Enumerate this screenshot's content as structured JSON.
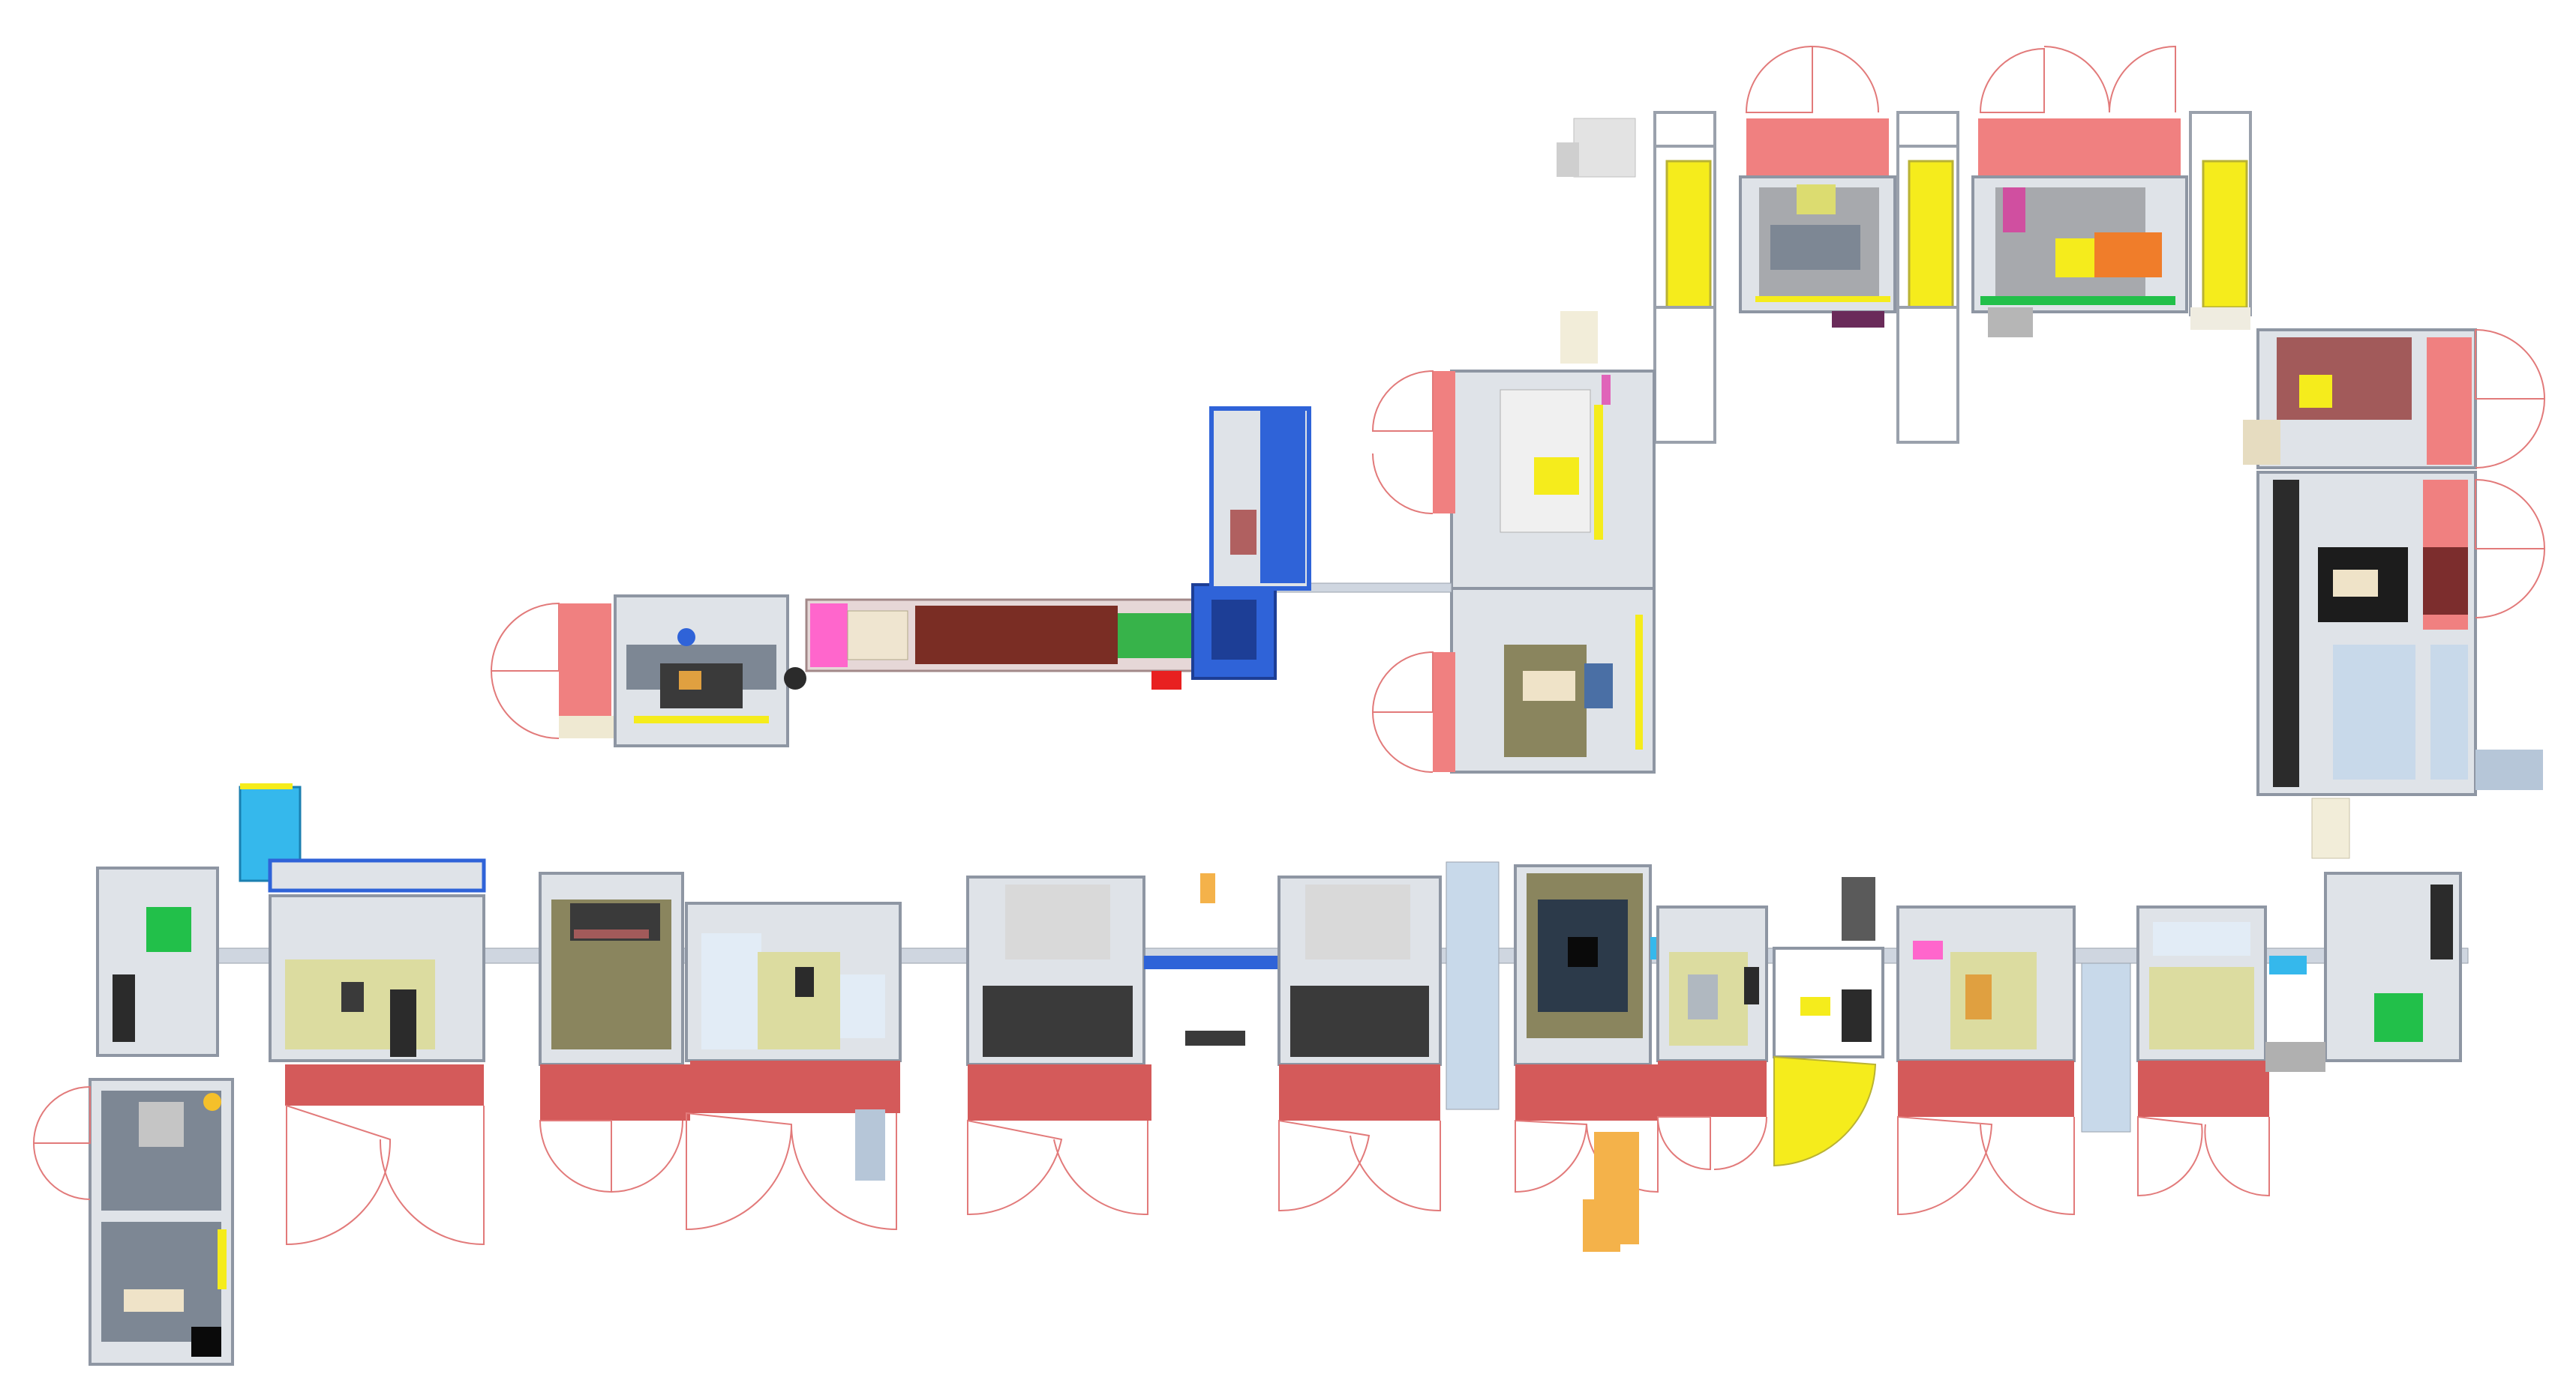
{
  "view": {
    "kind": "top-down CAD render of an automated assembly line layout",
    "text_labels": []
  },
  "palette": {
    "frame": "#d7dbe2",
    "frame_edge": "#8e96a3",
    "glass": "#e2ecf6",
    "guard_red": "#f08080",
    "guard_dark_red": "#d45a5a",
    "door_arc": "#e27a7a",
    "yellow_panel": "#f5ec1c",
    "olive_bed": "#8a855e",
    "light_olive": "#dcdca0",
    "conveyor_brown": "#7a2d24",
    "conveyor_green": "#37b34a",
    "blue_unit": "#2f63d8",
    "cyan_panel": "#35b8ec",
    "grey_machine": "#a7a9ad",
    "light_grey_box": "#d9d9d9",
    "dark_machine": "#2c3a4a",
    "orange_robot": "#f4b24a",
    "pink": "#ff66cc",
    "green_fixture": "#22c04a"
  },
  "areas": [
    {
      "id": "line-top-right",
      "label": ""
    },
    {
      "id": "line-upper-middle",
      "label": ""
    },
    {
      "id": "line-left-conveyor",
      "label": ""
    },
    {
      "id": "line-bottom-main",
      "label": ""
    }
  ]
}
